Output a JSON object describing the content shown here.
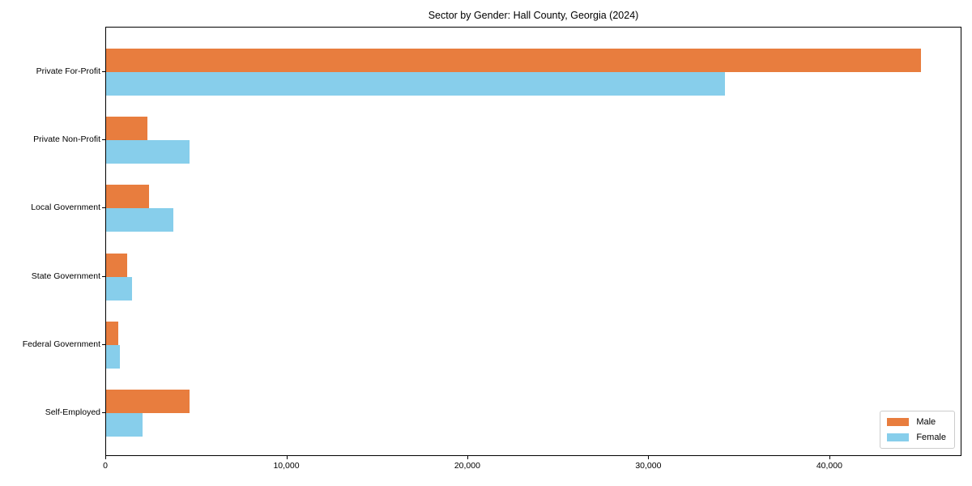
{
  "title": "Sector by Gender: Hall County, Georgia (2024)",
  "chart_data": {
    "type": "bar",
    "orientation": "horizontal",
    "title": "Sector by Gender: Hall County, Georgia (2024)",
    "xlabel": "",
    "ylabel": "",
    "categories": [
      "Private For-Profit",
      "Private Non-Profit",
      "Local Government",
      "State Government",
      "Federal Government",
      "Self-Employed"
    ],
    "series": [
      {
        "name": "Male",
        "color": "#e87d3e",
        "values": [
          45000,
          2300,
          2350,
          1150,
          670,
          4600
        ]
      },
      {
        "name": "Female",
        "color": "#87ceeb",
        "values": [
          34200,
          4600,
          3700,
          1450,
          750,
          2000
        ]
      }
    ],
    "xlim": [
      0,
      47300
    ],
    "xticks": [
      0,
      10000,
      20000,
      30000,
      40000
    ],
    "xtick_labels": [
      "0",
      "10,000",
      "20,000",
      "30,000",
      "40,000"
    ],
    "grid": false,
    "legend_position": "lower right",
    "plot_border_color": "#000000",
    "background_color": "#ffffff"
  }
}
